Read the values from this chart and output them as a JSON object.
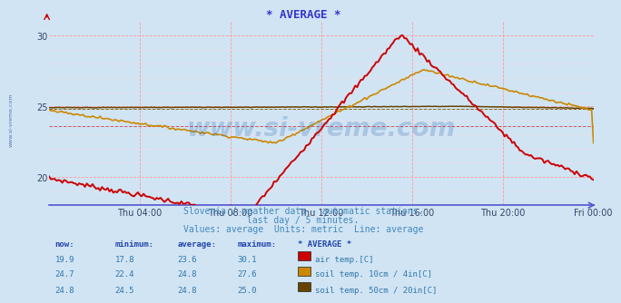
{
  "title": "* AVERAGE *",
  "subtitle1": "Slovenia / weather data - automatic stations.",
  "subtitle2": "last day / 5 minutes.",
  "subtitle3": "Values: average  Units: metric  Line: average",
  "background_color": "#d0e4f4",
  "plot_bg_color": "#d0e4f4",
  "title_color": "#3333cc",
  "subtitle_color": "#4488bb",
  "grid_major_color": "#ff9999",
  "grid_minor_color": "#ffdddd",
  "x_tick_labels": [
    "Thu 04:00",
    "Thu 08:00",
    "Thu 12:00",
    "Thu 16:00",
    "Thu 20:00",
    "Fri 00:00"
  ],
  "ylim_low": 18.0,
  "ylim_high": 31.0,
  "yticks": [
    20,
    25,
    30
  ],
  "watermark": "www.si-vreme.com",
  "watermark_color": "#1a5fa8",
  "side_label": "www.si-vreme.com",
  "air_temp_color": "#cc0000",
  "soil_10_color": "#cc8800",
  "soil_50_color": "#664400",
  "avg_line_air": 23.6,
  "avg_line_soil10": 24.8,
  "avg_line_soil50": 24.8,
  "table_header_color": "#2244aa",
  "table_data_color": "#3377aa",
  "table_headers": [
    "now:",
    "minimum:",
    "average:",
    "maximum:",
    "* AVERAGE *"
  ],
  "row1": {
    "now": "19.9",
    "min": "17.8",
    "avg": "23.6",
    "max": "30.1",
    "label": "air temp.[C]",
    "color": "#cc0000"
  },
  "row2": {
    "now": "24.7",
    "min": "22.4",
    "avg": "24.8",
    "max": "27.6",
    "label": "soil temp. 10cm / 4in[C]",
    "color": "#cc8800"
  },
  "row3": {
    "now": "24.8",
    "min": "24.5",
    "avg": "24.8",
    "max": "25.0",
    "label": "soil temp. 50cm / 20in[C]",
    "color": "#664400"
  }
}
